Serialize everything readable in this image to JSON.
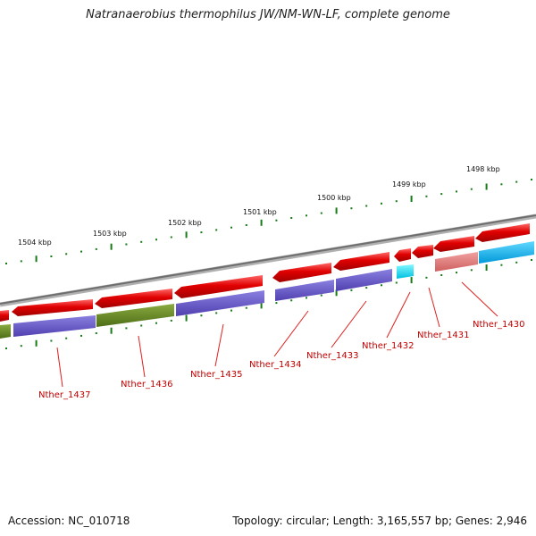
{
  "title": "Natranaerobius thermophilus JW/NM-WN-LF, complete genome",
  "footer": {
    "accession": "Accession: NC_010718",
    "topology": "Topology: circular; Length: 3,165,557 bp; Genes: 2,946"
  },
  "kbp_labels": [
    "1504 kbp",
    "1503 kbp",
    "1502 kbp",
    "1501 kbp",
    "1500 kbp",
    "1499 kbp",
    "1498 kbp"
  ],
  "gene_labels": [
    "Nther_1437",
    "Nther_1436",
    "Nther_1435",
    "Nther_1434",
    "Nther_1433",
    "Nther_1432",
    "Nther_1431",
    "Nther_1430"
  ],
  "colors": {
    "backbone": "#8a8a8a",
    "gene_red": "#e00000",
    "gene_pink": "#e07070",
    "purple": "#6a5acd",
    "olive": "#6b8e23",
    "cyan": "#00d8f0",
    "sky": "#00b8f0",
    "tick_green": "#1a7a1a",
    "label_red": "#c00000"
  }
}
